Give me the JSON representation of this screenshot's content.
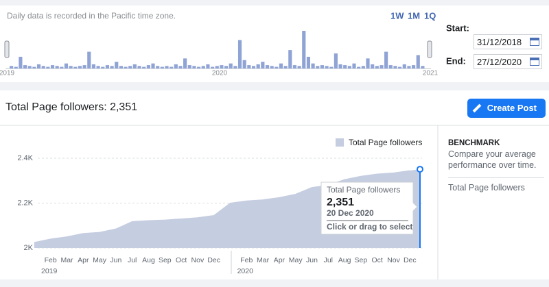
{
  "timeline": {
    "note": "Daily data is recorded in the Pacific time zone.",
    "ranges": [
      "1W",
      "1M",
      "1Q"
    ],
    "values": [
      3,
      2,
      14,
      4,
      3,
      2,
      5,
      3,
      2,
      4,
      3,
      2,
      6,
      3,
      2,
      3,
      4,
      20,
      5,
      3,
      2,
      4,
      3,
      8,
      3,
      2,
      3,
      5,
      3,
      2,
      4,
      6,
      3,
      2,
      3,
      2,
      5,
      3,
      12,
      4,
      3,
      2,
      3,
      5,
      2,
      3,
      4,
      3,
      6,
      3,
      34,
      10,
      4,
      3,
      5,
      8,
      4,
      3,
      2,
      6,
      3,
      22,
      4,
      3,
      45,
      14,
      6,
      3,
      4,
      3,
      2,
      18,
      5,
      4,
      3,
      6,
      2,
      3,
      12,
      5,
      3,
      4,
      20,
      4,
      3,
      2,
      5,
      3,
      4,
      16,
      3
    ],
    "labels": [
      "2019",
      "2020",
      "2021"
    ]
  },
  "dates": {
    "start_label": "Start:",
    "start_value": "31/12/2018",
    "end_label": "End:",
    "end_value": "27/12/2020"
  },
  "summary": {
    "title": "Total Page followers: 2,351",
    "button": "Create Post"
  },
  "chart_data": {
    "type": "area",
    "categories": [
      null,
      "Feb",
      "Mar",
      "Apr",
      "May",
      "Jun",
      "Jul",
      "Aug",
      "Sep",
      "Oct",
      "Nov",
      "Dec",
      null,
      "Feb",
      "Mar",
      "Apr",
      "May",
      "Jun",
      "Jul",
      "Aug",
      "Sep",
      "Oct",
      "Nov",
      "Dec"
    ],
    "x_groups": [
      "2019",
      "2020"
    ],
    "series": [
      {
        "name": "Total Page followers",
        "color": "#c5cde0",
        "values": [
          2025,
          2040,
          2050,
          2065,
          2070,
          2085,
          2118,
          2122,
          2125,
          2130,
          2135,
          2145,
          2200,
          2210,
          2215,
          2225,
          2240,
          2270,
          2280,
          2305,
          2320,
          2330,
          2335,
          2345
        ]
      }
    ],
    "ylim": [
      2000,
      2420
    ],
    "yticks": [
      {
        "value": 2000,
        "label": "2K"
      },
      {
        "value": 2200,
        "label": "2.2K"
      },
      {
        "value": 2400,
        "label": "2.4K"
      }
    ],
    "grid": true,
    "tooltip": {
      "title": "Total Page followers",
      "value": 2351,
      "value_label": "2,351",
      "date": "20 Dec 2020",
      "hint": "Click or drag to select"
    }
  },
  "sidebar": {
    "title": "BENCHMARK",
    "text": "Compare your average performance over time.",
    "metric": "Total Page followers"
  }
}
